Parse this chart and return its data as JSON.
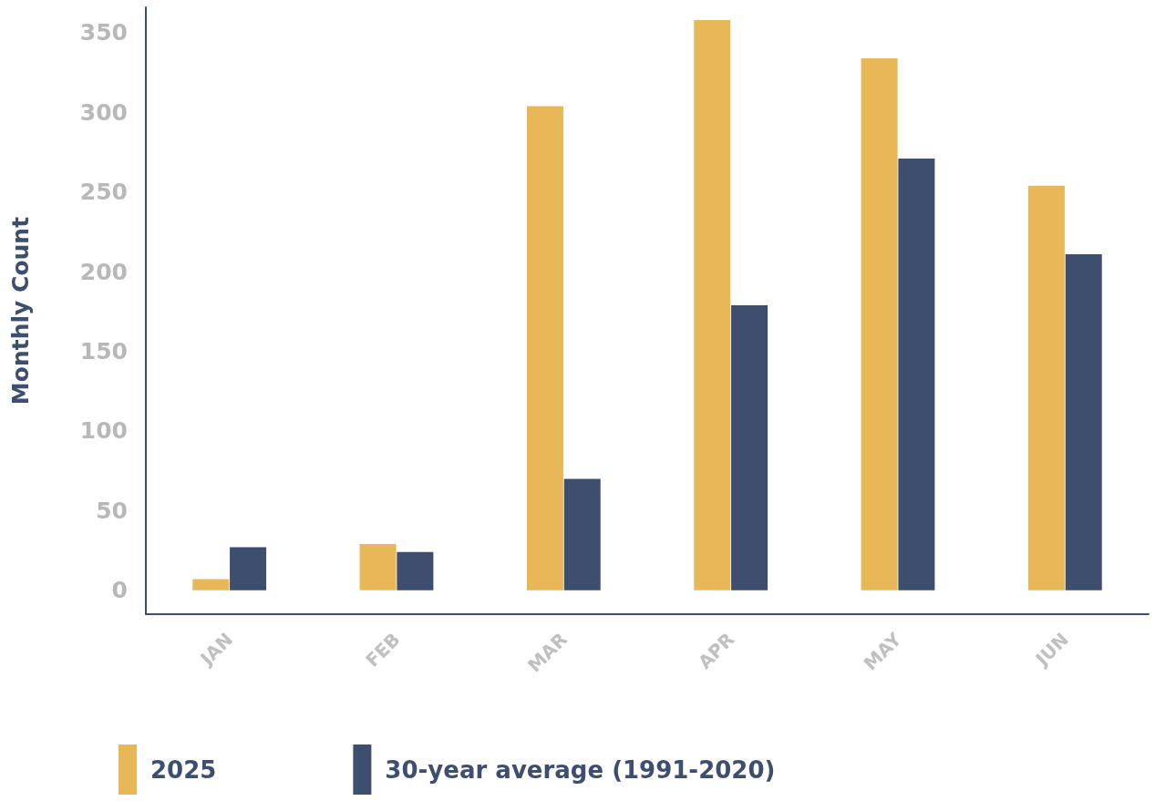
{
  "chart_data": {
    "type": "bar",
    "ylabel": "Monthly Count",
    "categories": [
      "JAN",
      "FEB",
      "MAR",
      "APR",
      "MAY",
      "JUN"
    ],
    "series": [
      {
        "name": "2025",
        "color": "#e8b757",
        "values": [
          7,
          29,
          304,
          358,
          334,
          254
        ]
      },
      {
        "name": "30-year average (1991-2020)",
        "color": "#3d4e6e",
        "values": [
          27,
          24,
          70,
          179,
          271,
          211
        ]
      }
    ],
    "ylim": [
      -15,
      366
    ],
    "yticks": [
      0,
      50,
      100,
      150,
      200,
      250,
      300,
      350
    ],
    "grid": false,
    "legend": "bottom left"
  }
}
